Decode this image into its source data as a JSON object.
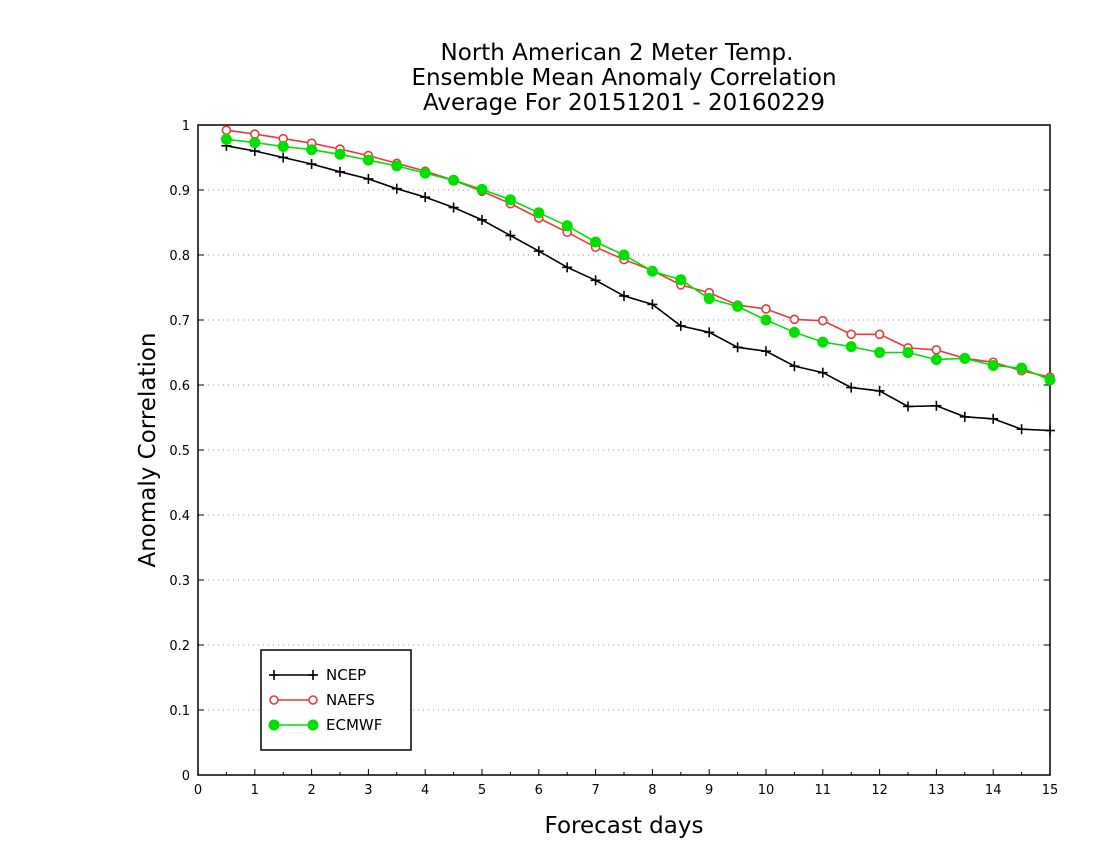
{
  "chart_data": {
    "type": "line",
    "title_lines": [
      "North American 2 Meter Temp.",
      "Ensemble Mean Anomaly Correlation",
      "Average For 20151201 - 20160229"
    ],
    "xlabel": "Forecast days",
    "ylabel": "Anomaly Correlation",
    "xlim": [
      0,
      15
    ],
    "ylim": [
      0,
      1
    ],
    "xticks": [
      "0",
      "1",
      "2",
      "3",
      "4",
      "5",
      "6",
      "7",
      "8",
      "9",
      "10",
      "11",
      "12",
      "13",
      "14",
      "15"
    ],
    "yticks": [
      "0",
      "0.1",
      "0.2",
      "0.3",
      "0.4",
      "0.5",
      "0.6",
      "0.7",
      "0.8",
      "0.9",
      "1"
    ],
    "grid": "horizontal dotted",
    "legend_position": "bottom-left",
    "x": [
      0.5,
      1,
      1.5,
      2,
      2.5,
      3,
      3.5,
      4,
      4.5,
      5,
      5.5,
      6,
      6.5,
      7,
      7.5,
      8,
      8.5,
      9,
      9.5,
      10,
      10.5,
      11,
      11.5,
      12,
      12.5,
      13,
      13.5,
      14,
      14.5,
      15
    ],
    "series": [
      {
        "name": "NCEP",
        "color": "#000000",
        "marker": "plus",
        "values": [
          0.968,
          0.96,
          0.95,
          0.94,
          0.928,
          0.917,
          0.902,
          0.889,
          0.873,
          0.854,
          0.83,
          0.806,
          0.781,
          0.761,
          0.737,
          0.724,
          0.691,
          0.681,
          0.658,
          0.652,
          0.629,
          0.619,
          0.596,
          0.591,
          0.567,
          0.568,
          0.551,
          0.548,
          0.532,
          0.53
        ]
      },
      {
        "name": "NAEFS",
        "color": "#e83a3a",
        "marker": "open-circle",
        "values": [
          0.992,
          0.986,
          0.979,
          0.972,
          0.963,
          0.953,
          0.941,
          0.929,
          0.915,
          0.898,
          0.879,
          0.857,
          0.835,
          0.812,
          0.793,
          0.776,
          0.754,
          0.742,
          0.723,
          0.717,
          0.701,
          0.699,
          0.678,
          0.678,
          0.657,
          0.654,
          0.641,
          0.635,
          0.622,
          0.612
        ]
      },
      {
        "name": "ECMWF",
        "color": "#00e000",
        "marker": "filled-circle",
        "values": [
          0.978,
          0.973,
          0.967,
          0.962,
          0.955,
          0.946,
          0.937,
          0.926,
          0.915,
          0.901,
          0.885,
          0.865,
          0.845,
          0.82,
          0.8,
          0.775,
          0.762,
          0.733,
          0.721,
          0.7,
          0.681,
          0.666,
          0.659,
          0.65,
          0.65,
          0.639,
          0.641,
          0.63,
          0.626,
          0.608
        ]
      }
    ]
  }
}
